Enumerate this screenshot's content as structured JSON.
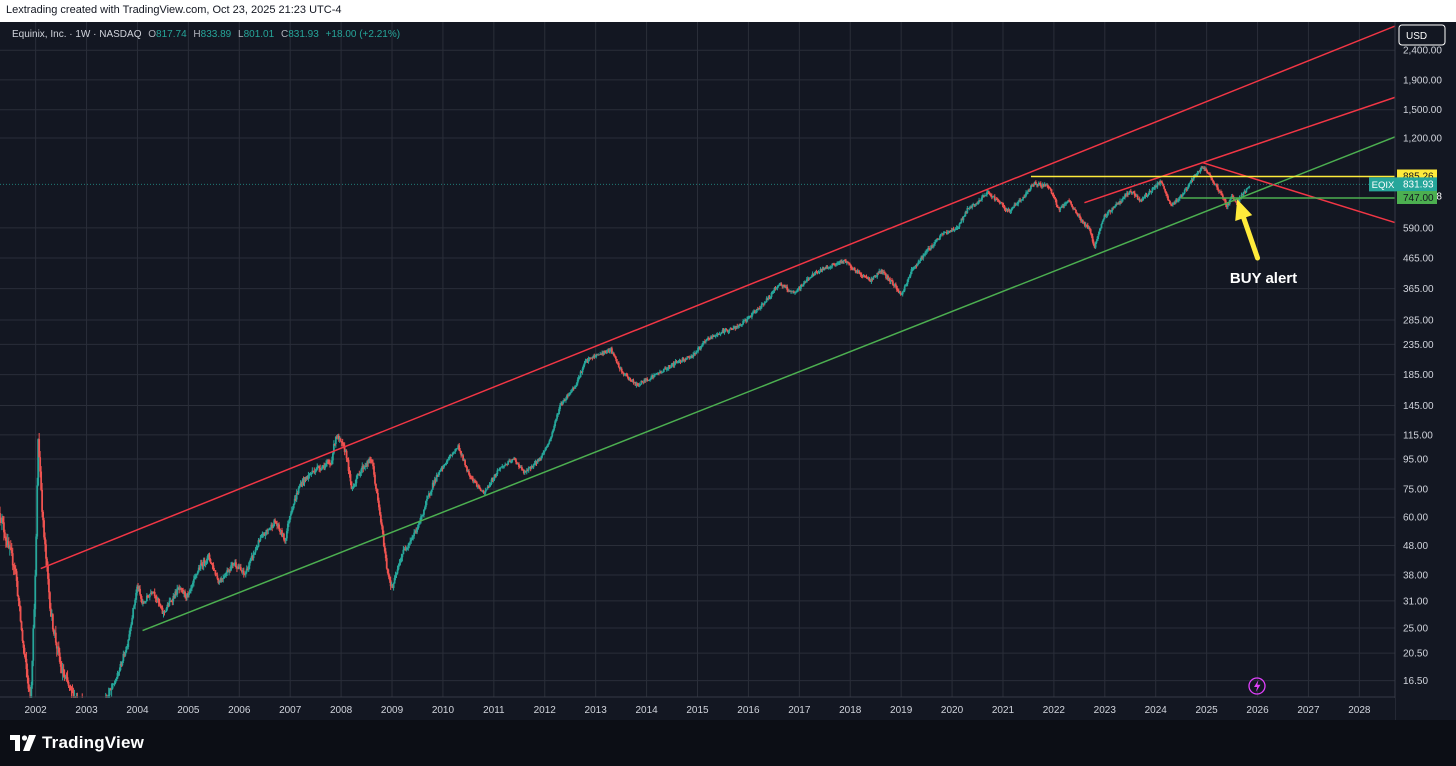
{
  "header": {
    "attribution": "Lextrading created with TradingView.com, Oct 23, 2025 21:23 UTC-4"
  },
  "footer": {
    "brand": "TradingView",
    "brand_icon": "tradingview-logo-icon"
  },
  "chart_data": {
    "type": "candlestick",
    "symbol_info": {
      "name": "Equinix, Inc. · 1W · NASDAQ",
      "o_label": "O",
      "o_value": "817.74",
      "h_label": "H",
      "h_value": "833.89",
      "l_label": "L",
      "l_value": "801.01",
      "c_label": "C",
      "c_value": "831.93",
      "change": "+18.00 (+2.21%)"
    },
    "currency": "USD",
    "y_scale": "log",
    "y_range": [
      14.5,
      3000
    ],
    "x_range": [
      2001.3,
      2028.7
    ],
    "y_ticks": [
      "2,400.00",
      "1,900.00",
      "1,500.00",
      "1,200.00",
      "590.00",
      "465.00",
      "365.00",
      "285.00",
      "235.00",
      "185.00",
      "145.00",
      "115.00",
      "95.00",
      "75.00",
      "60.00",
      "48.00",
      "38.00",
      "31.00",
      "25.00",
      "20.50",
      "16.50"
    ],
    "x_ticks": [
      "2002",
      "2003",
      "2004",
      "2005",
      "2006",
      "2007",
      "2008",
      "2009",
      "2010",
      "2011",
      "2012",
      "2013",
      "2014",
      "2015",
      "2016",
      "2017",
      "2018",
      "2019",
      "2020",
      "2021",
      "2022",
      "2023",
      "2024",
      "2025",
      "2026",
      "2027",
      "2028"
    ],
    "price_labels": [
      {
        "text": "885.26",
        "value": 885.26,
        "color": "#ffeb3b",
        "text_color": "#131722"
      },
      {
        "text": "EQIX",
        "value": 831.93,
        "color": "#26a69a",
        "text_color": "#ffffff",
        "kind": "symbol"
      },
      {
        "text": "831.93",
        "value": 831.93,
        "color": "#26a69a",
        "text_color": "#ffffff"
      },
      {
        "text": "18:36:48",
        "value": 780,
        "color": "#26a69a",
        "text_color": "#ffffff"
      },
      {
        "text": "747.00",
        "value": 747,
        "color": "#4caf50",
        "text_color": "#131722"
      }
    ],
    "price_path": [
      [
        2001.3,
        62
      ],
      [
        2001.45,
        48
      ],
      [
        2001.6,
        40
      ],
      [
        2001.75,
        22
      ],
      [
        2001.9,
        14
      ],
      [
        2002.0,
        40
      ],
      [
        2002.05,
        112
      ],
      [
        2002.1,
        80
      ],
      [
        2002.15,
        55
      ],
      [
        2002.3,
        28
      ],
      [
        2002.5,
        18
      ],
      [
        2002.7,
        15
      ],
      [
        2003.0,
        13
      ],
      [
        2003.3,
        13
      ],
      [
        2003.6,
        17
      ],
      [
        2003.8,
        22
      ],
      [
        2004.0,
        35
      ],
      [
        2004.1,
        30
      ],
      [
        2004.3,
        34
      ],
      [
        2004.5,
        28
      ],
      [
        2004.8,
        34
      ],
      [
        2005.0,
        32
      ],
      [
        2005.2,
        40
      ],
      [
        2005.4,
        44
      ],
      [
        2005.6,
        36
      ],
      [
        2005.9,
        42
      ],
      [
        2006.1,
        38
      ],
      [
        2006.4,
        50
      ],
      [
        2006.7,
        58
      ],
      [
        2006.9,
        50
      ],
      [
        2007.0,
        62
      ],
      [
        2007.2,
        78
      ],
      [
        2007.5,
        88
      ],
      [
        2007.8,
        92
      ],
      [
        2007.9,
        115
      ],
      [
        2008.1,
        100
      ],
      [
        2008.2,
        75
      ],
      [
        2008.4,
        88
      ],
      [
        2008.6,
        95
      ],
      [
        2008.8,
        55
      ],
      [
        2008.9,
        40
      ],
      [
        2009.0,
        34
      ],
      [
        2009.2,
        45
      ],
      [
        2009.5,
        55
      ],
      [
        2009.8,
        78
      ],
      [
        2010.1,
        95
      ],
      [
        2010.3,
        105
      ],
      [
        2010.5,
        85
      ],
      [
        2010.8,
        72
      ],
      [
        2011.1,
        88
      ],
      [
        2011.4,
        95
      ],
      [
        2011.6,
        85
      ],
      [
        2011.9,
        95
      ],
      [
        2012.1,
        110
      ],
      [
        2012.3,
        145
      ],
      [
        2012.6,
        170
      ],
      [
        2012.8,
        205
      ],
      [
        2013.0,
        215
      ],
      [
        2013.3,
        225
      ],
      [
        2013.5,
        190
      ],
      [
        2013.8,
        170
      ],
      [
        2014.0,
        178
      ],
      [
        2014.3,
        190
      ],
      [
        2014.6,
        205
      ],
      [
        2014.9,
        215
      ],
      [
        2015.2,
        245
      ],
      [
        2015.5,
        260
      ],
      [
        2015.8,
        270
      ],
      [
        2016.1,
        300
      ],
      [
        2016.4,
        340
      ],
      [
        2016.6,
        380
      ],
      [
        2016.9,
        350
      ],
      [
        2017.2,
        400
      ],
      [
        2017.5,
        430
      ],
      [
        2017.9,
        455
      ],
      [
        2018.1,
        420
      ],
      [
        2018.4,
        390
      ],
      [
        2018.6,
        420
      ],
      [
        2018.9,
        370
      ],
      [
        2019.0,
        345
      ],
      [
        2019.2,
        420
      ],
      [
        2019.5,
        490
      ],
      [
        2019.8,
        560
      ],
      [
        2020.1,
        590
      ],
      [
        2020.3,
        680
      ],
      [
        2020.5,
        720
      ],
      [
        2020.7,
        780
      ],
      [
        2020.9,
        730
      ],
      [
        2021.1,
        670
      ],
      [
        2021.4,
        750
      ],
      [
        2021.6,
        840
      ],
      [
        2021.9,
        820
      ],
      [
        2022.1,
        680
      ],
      [
        2022.3,
        730
      ],
      [
        2022.5,
        640
      ],
      [
        2022.7,
        580
      ],
      [
        2022.8,
        510
      ],
      [
        2023.0,
        650
      ],
      [
        2023.2,
        700
      ],
      [
        2023.5,
        790
      ],
      [
        2023.7,
        730
      ],
      [
        2023.9,
        790
      ],
      [
        2024.1,
        850
      ],
      [
        2024.3,
        700
      ],
      [
        2024.5,
        760
      ],
      [
        2024.7,
        850
      ],
      [
        2024.9,
        950
      ],
      [
        2025.0,
        920
      ],
      [
        2025.1,
        870
      ],
      [
        2025.25,
        790
      ],
      [
        2025.4,
        700
      ],
      [
        2025.5,
        760
      ],
      [
        2025.6,
        720
      ],
      [
        2025.7,
        770
      ],
      [
        2025.8,
        805
      ],
      [
        2025.85,
        832
      ]
    ],
    "trendlines": [
      {
        "name": "upper-channel",
        "color": "#f23645",
        "x1": 2002.1,
        "y1": 40,
        "x2": 2028.9,
        "y2": 3000
      },
      {
        "name": "mid-channel",
        "color": "#f23645",
        "x1": 2022.6,
        "y1": 720,
        "x2": 2028.9,
        "y2": 1700
      },
      {
        "name": "lower-channel",
        "color": "#4caf50",
        "x1": 2004.1,
        "y1": 24.5,
        "x2": 2028.9,
        "y2": 1250
      },
      {
        "name": "descending-resistance",
        "color": "#f23645",
        "x1": 2024.9,
        "y1": 990,
        "x2": 2028.9,
        "y2": 600
      },
      {
        "name": "resistance-885",
        "color": "#ffeb3b",
        "x1": 2021.55,
        "y1": 885.26,
        "x2": 2028.9,
        "y2": 885.26
      },
      {
        "name": "support-747",
        "color": "#4caf50",
        "x1": 2024.5,
        "y1": 747,
        "x2": 2028.9,
        "y2": 747
      }
    ],
    "annotation": {
      "text": "BUY alert",
      "color": "#ffeb3b",
      "from": [
        2026.0,
        465
      ],
      "to": [
        2025.6,
        740
      ]
    }
  }
}
